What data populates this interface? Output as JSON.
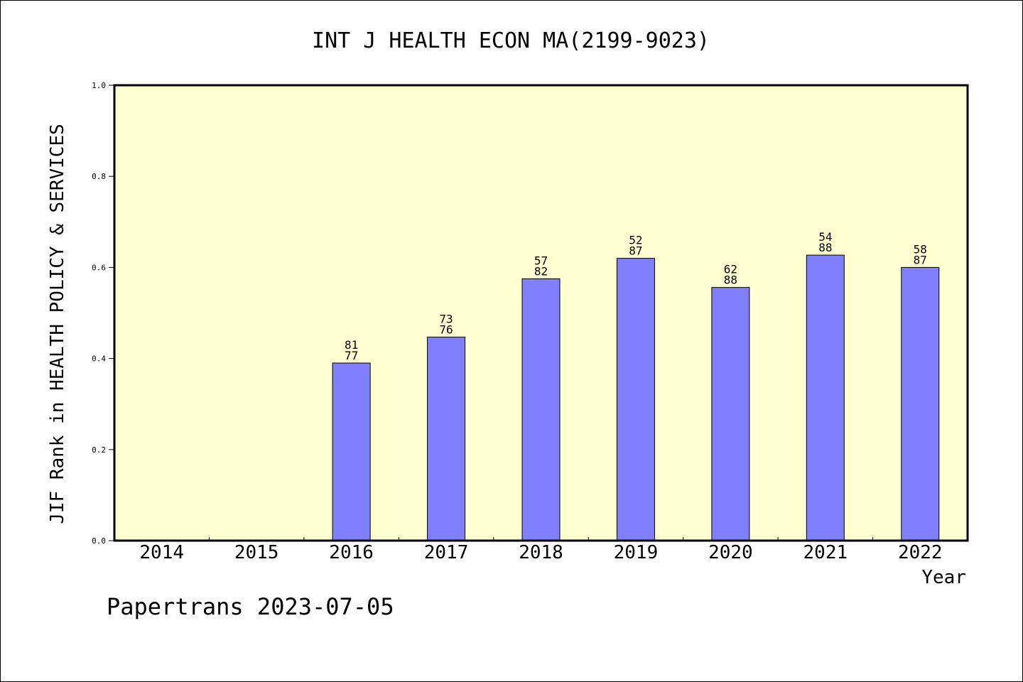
{
  "chart_data": {
    "type": "bar",
    "title": "INT J HEALTH ECON MA(2199-9023)",
    "xlabel": "Year",
    "ylabel": "JIF Rank in HEALTH POLICY & SERVICES",
    "ylim": [
      0,
      1.0
    ],
    "yticks": [
      "0.0",
      "0.2",
      "0.4",
      "0.6",
      "0.8",
      "1.0"
    ],
    "categories": [
      "2014",
      "2015",
      "2016",
      "2017",
      "2018",
      "2019",
      "2020",
      "2021",
      "2022"
    ],
    "values": [
      null,
      null,
      0.39,
      0.447,
      0.575,
      0.62,
      0.556,
      0.627,
      0.6
    ],
    "labels_top": [
      "",
      "",
      "81",
      "73",
      "57",
      "52",
      "62",
      "54",
      "58"
    ],
    "labels_bottom": [
      "",
      "",
      "77",
      "76",
      "82",
      "87",
      "88",
      "88",
      "87"
    ],
    "grid": false,
    "colors": {
      "plot_bg": "#ffffd2",
      "bar_fill": "#8080ff",
      "bar_stroke": "#000000",
      "axis": "#000000"
    }
  },
  "footer": {
    "watermark": "Papertrans 2023-07-05"
  }
}
